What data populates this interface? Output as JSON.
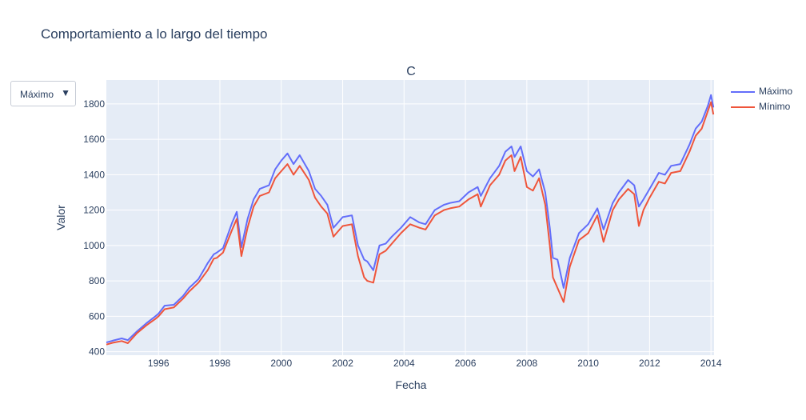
{
  "title": "Comportamiento a lo largo del tiempo",
  "dropdown": {
    "selected": "Máximo",
    "arrow": "▼"
  },
  "chart_data": {
    "type": "line",
    "subtitle": "C",
    "xlabel": "Fecha",
    "ylabel": "Valor",
    "xlim": [
      1994.3,
      2014.1
    ],
    "ylim": [
      380,
      1935
    ],
    "x_ticks": [
      "1996",
      "1998",
      "2000",
      "2002",
      "2004",
      "2006",
      "2008",
      "2010",
      "2012",
      "2014"
    ],
    "y_ticks": [
      "400",
      "600",
      "800",
      "1000",
      "1200",
      "1400",
      "1600",
      "1800"
    ],
    "grid": true,
    "legend_position": "top-right",
    "colors": {
      "Máximo": "#636efa",
      "Mínimo": "#ef553b",
      "plot_bg": "#e5ecf6",
      "grid": "#ffffff"
    },
    "x": [
      1994.3,
      1994.5,
      1994.8,
      1995.0,
      1995.3,
      1995.6,
      1995.9,
      1996.0,
      1996.2,
      1996.5,
      1996.8,
      1997.0,
      1997.3,
      1997.6,
      1997.8,
      1997.9,
      1998.1,
      1998.4,
      1998.55,
      1998.7,
      1998.9,
      1999.1,
      1999.3,
      1999.6,
      1999.8,
      2000.0,
      2000.2,
      2000.4,
      2000.6,
      2000.9,
      2001.1,
      2001.3,
      2001.5,
      2001.7,
      2001.85,
      2002.0,
      2002.3,
      2002.5,
      2002.7,
      2002.8,
      2003.0,
      2003.2,
      2003.4,
      2003.6,
      2003.9,
      2004.2,
      2004.5,
      2004.7,
      2005.0,
      2005.3,
      2005.5,
      2005.8,
      2006.1,
      2006.4,
      2006.5,
      2006.8,
      2007.1,
      2007.3,
      2007.5,
      2007.6,
      2007.8,
      2008.0,
      2008.2,
      2008.4,
      2008.6,
      2008.75,
      2008.85,
      2009.0,
      2009.2,
      2009.4,
      2009.7,
      2010.0,
      2010.3,
      2010.5,
      2010.8,
      2011.0,
      2011.3,
      2011.5,
      2011.65,
      2011.8,
      2012.0,
      2012.3,
      2012.5,
      2012.7,
      2013.0,
      2013.3,
      2013.5,
      2013.7,
      2013.9,
      2014.0,
      2014.08
    ],
    "series": [
      {
        "name": "Máximo",
        "values": [
          452,
          462,
          475,
          465,
          515,
          560,
          600,
          615,
          660,
          665,
          715,
          760,
          810,
          900,
          950,
          960,
          985,
          1130,
          1190,
          990,
          1150,
          1260,
          1320,
          1340,
          1430,
          1480,
          1520,
          1460,
          1510,
          1420,
          1320,
          1280,
          1230,
          1100,
          1130,
          1160,
          1170,
          1000,
          920,
          910,
          860,
          1000,
          1010,
          1050,
          1100,
          1160,
          1130,
          1120,
          1200,
          1230,
          1240,
          1250,
          1300,
          1330,
          1280,
          1380,
          1450,
          1530,
          1560,
          1500,
          1560,
          1420,
          1390,
          1430,
          1300,
          1100,
          930,
          920,
          760,
          930,
          1070,
          1120,
          1210,
          1090,
          1240,
          1300,
          1370,
          1340,
          1220,
          1260,
          1320,
          1410,
          1400,
          1450,
          1460,
          1570,
          1660,
          1700,
          1790,
          1850,
          1780
        ]
      },
      {
        "name": "Mínimo",
        "values": [
          440,
          450,
          460,
          448,
          505,
          548,
          585,
          600,
          640,
          650,
          700,
          740,
          790,
          860,
          925,
          930,
          960,
          1090,
          1150,
          940,
          1100,
          1220,
          1280,
          1300,
          1380,
          1420,
          1460,
          1400,
          1450,
          1370,
          1270,
          1220,
          1180,
          1050,
          1080,
          1110,
          1120,
          940,
          820,
          800,
          790,
          950,
          970,
          1010,
          1070,
          1120,
          1100,
          1090,
          1170,
          1200,
          1210,
          1220,
          1260,
          1290,
          1220,
          1340,
          1400,
          1480,
          1510,
          1420,
          1500,
          1330,
          1310,
          1380,
          1230,
          1000,
          820,
          760,
          680,
          880,
          1030,
          1070,
          1170,
          1020,
          1200,
          1260,
          1320,
          1290,
          1110,
          1200,
          1270,
          1360,
          1350,
          1410,
          1420,
          1530,
          1620,
          1660,
          1760,
          1810,
          1740
        ]
      }
    ]
  }
}
